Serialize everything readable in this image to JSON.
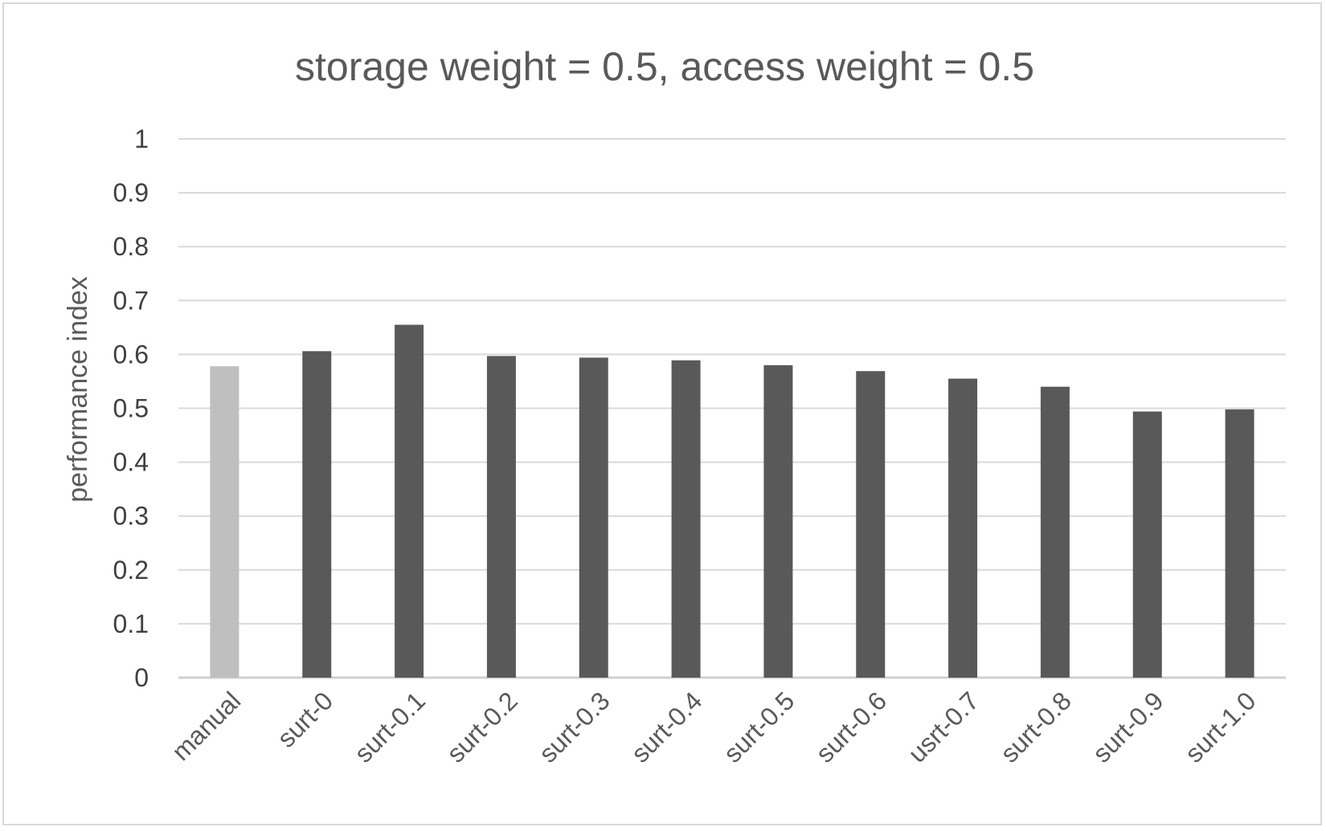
{
  "chart_data": {
    "type": "bar",
    "title": "storage weight = 0.5, access weight = 0.5",
    "xlabel": "",
    "ylabel": "performance index",
    "ylim": [
      0,
      1
    ],
    "yticks": [
      "0",
      "0.1",
      "0.2",
      "0.3",
      "0.4",
      "0.5",
      "0.6",
      "0.7",
      "0.8",
      "0.9",
      "1"
    ],
    "categories": [
      "manual",
      "surt-0",
      "surt-0.1",
      "surt-0.2",
      "surt-0.3",
      "surt-0.4",
      "surt-0.5",
      "surt-0.6",
      "usrt-0.7",
      "surt-0.8",
      "surt-0.9",
      "surt-1.0"
    ],
    "values": [
      0.578,
      0.606,
      0.655,
      0.597,
      0.594,
      0.589,
      0.58,
      0.569,
      0.555,
      0.54,
      0.494,
      0.498
    ],
    "bar_colors": [
      "#bfbfbf",
      "#595959",
      "#595959",
      "#595959",
      "#595959",
      "#595959",
      "#595959",
      "#595959",
      "#595959",
      "#595959",
      "#595959",
      "#595959"
    ],
    "grid": true,
    "legend": "none"
  }
}
